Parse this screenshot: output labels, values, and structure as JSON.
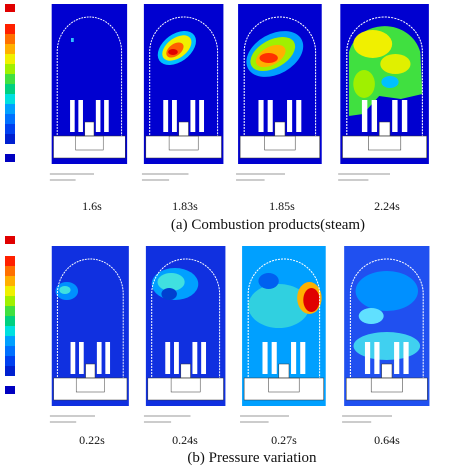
{
  "figure": {
    "panel_a": {
      "caption": "(a)  Combustion products(steam)",
      "times": [
        "1.6s",
        "1.83s",
        "1.85s",
        "2.24s"
      ]
    },
    "panel_b": {
      "caption": "(b)  Pressure variation",
      "times": [
        "0.22s",
        "0.24s",
        "0.27s",
        "0.64s"
      ]
    }
  }
}
